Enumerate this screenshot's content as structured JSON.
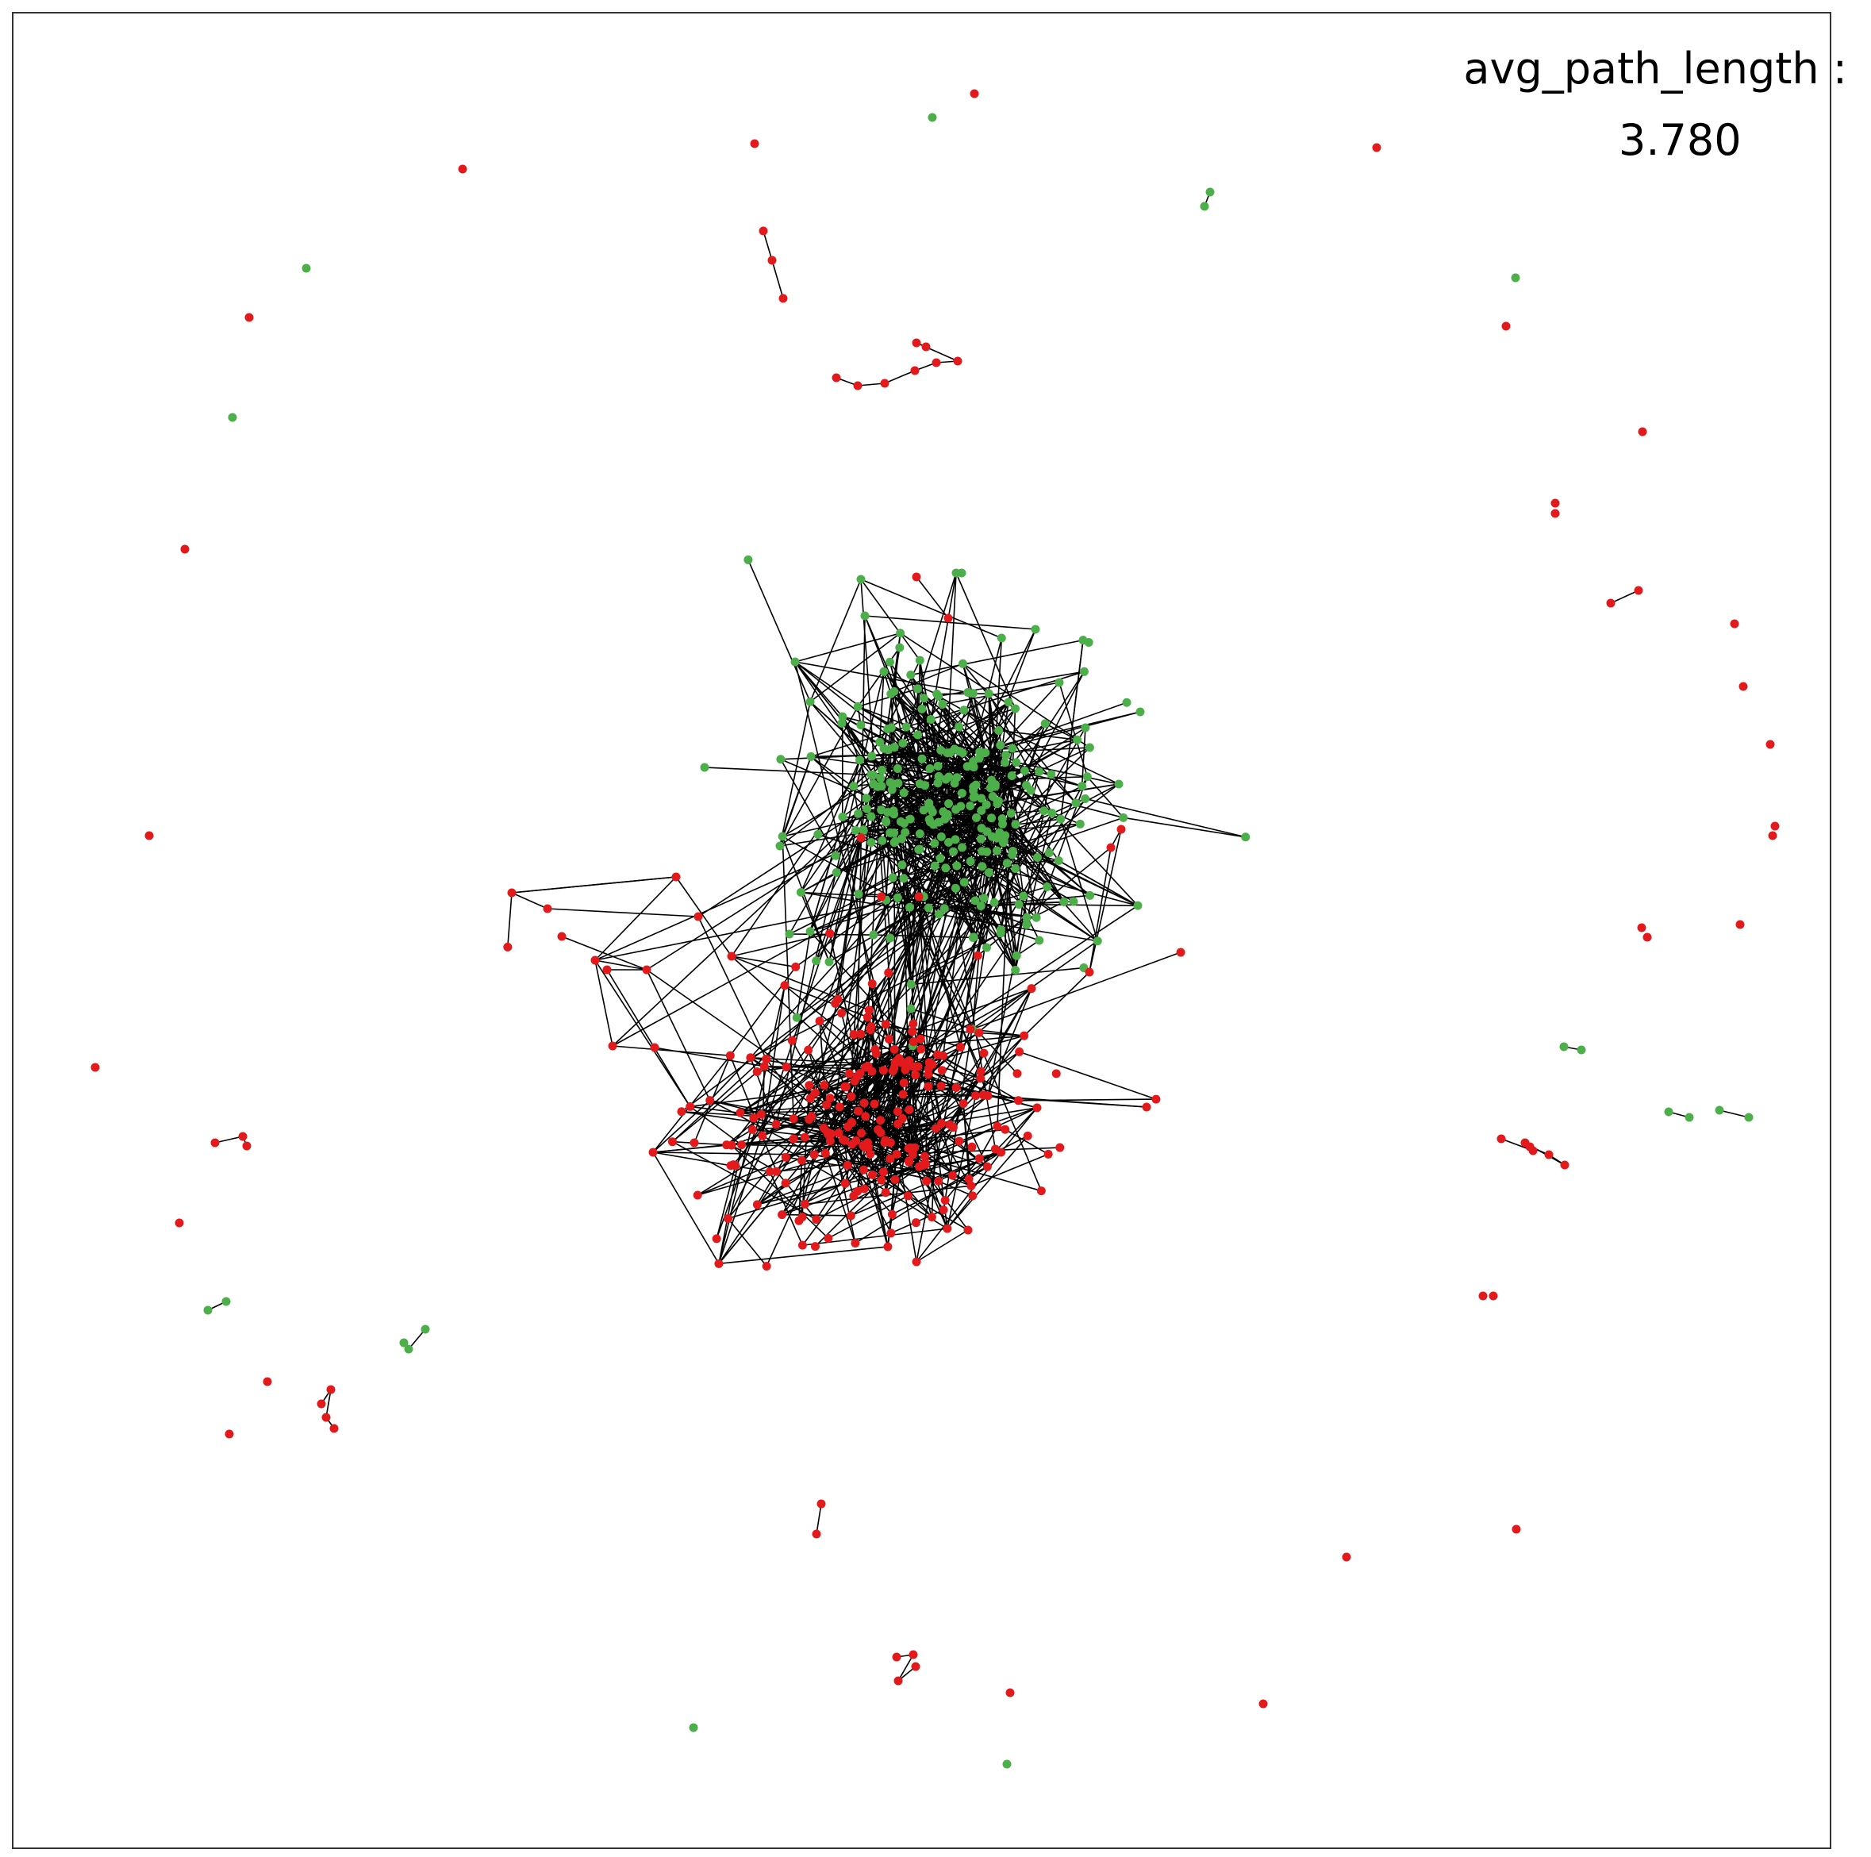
{
  "metric": {
    "label": "avg_path_length :",
    "value": "3.780"
  },
  "colors": {
    "group_a": "#e31a1c",
    "group_b": "#4daf4a",
    "edge": "#000000",
    "frame": "#333333"
  }
}
